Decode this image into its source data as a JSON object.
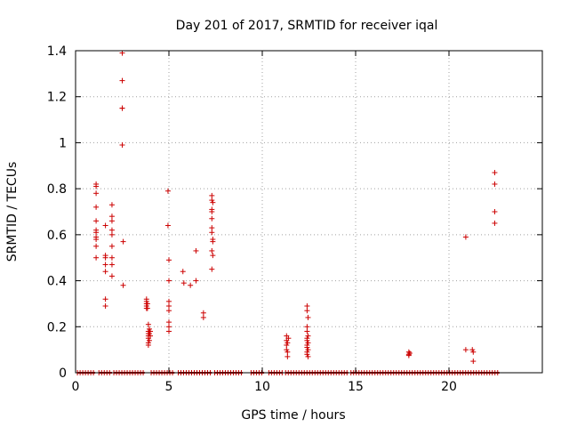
{
  "chart_data": {
    "type": "scatter",
    "title": "Day 201 of 2017, SRMTID for receiver iqal",
    "xlabel": "GPS time / hours",
    "ylabel": "SRMTID / TECUs",
    "xlim": [
      0,
      25
    ],
    "ylim": [
      0,
      1.4
    ],
    "xticks": [
      0,
      5,
      10,
      15,
      20
    ],
    "xtick_labels": [
      "0",
      "5",
      "10",
      "15",
      "20"
    ],
    "yticks": [
      0,
      0.2,
      0.4,
      0.6,
      0.8,
      1,
      1.2,
      1.4
    ],
    "ytick_labels": [
      "0",
      "0.2",
      "0.4",
      "0.6",
      "0.8",
      "1",
      "1.2",
      "1.4"
    ],
    "grid": true,
    "marker": "+",
    "color": "#cc0000",
    "zero_segments": [
      [
        0.1,
        1.05
      ],
      [
        1.25,
        1.95
      ],
      [
        2.05,
        3.7
      ],
      [
        4.05,
        5.3
      ],
      [
        5.5,
        7.3
      ],
      [
        7.45,
        8.95
      ],
      [
        9.4,
        10.1
      ],
      [
        10.35,
        11.1
      ],
      [
        11.25,
        14.6
      ],
      [
        14.75,
        22.7
      ]
    ],
    "series": [
      {
        "name": "SRMTID",
        "points": [
          [
            1.1,
            0.82
          ],
          [
            1.1,
            0.81
          ],
          [
            1.1,
            0.78
          ],
          [
            1.1,
            0.72
          ],
          [
            1.1,
            0.66
          ],
          [
            1.1,
            0.62
          ],
          [
            1.1,
            0.61
          ],
          [
            1.1,
            0.59
          ],
          [
            1.1,
            0.58
          ],
          [
            1.1,
            0.55
          ],
          [
            1.1,
            0.5
          ],
          [
            1.6,
            0.64
          ],
          [
            1.6,
            0.51
          ],
          [
            1.6,
            0.5
          ],
          [
            1.6,
            0.47
          ],
          [
            1.6,
            0.44
          ],
          [
            1.6,
            0.32
          ],
          [
            1.6,
            0.29
          ],
          [
            1.95,
            0.73
          ],
          [
            1.95,
            0.68
          ],
          [
            1.95,
            0.66
          ],
          [
            1.95,
            0.62
          ],
          [
            1.95,
            0.6
          ],
          [
            1.95,
            0.55
          ],
          [
            1.95,
            0.5
          ],
          [
            1.95,
            0.47
          ],
          [
            1.95,
            0.42
          ],
          [
            2.5,
            1.39
          ],
          [
            2.5,
            1.27
          ],
          [
            2.5,
            1.15
          ],
          [
            2.5,
            1.15
          ],
          [
            2.5,
            0.99
          ],
          [
            2.55,
            0.57
          ],
          [
            2.55,
            0.38
          ],
          [
            3.8,
            0.32
          ],
          [
            3.8,
            0.31
          ],
          [
            3.8,
            0.3
          ],
          [
            3.8,
            0.29
          ],
          [
            3.8,
            0.28
          ],
          [
            3.85,
            0.3
          ],
          [
            3.85,
            0.28
          ],
          [
            3.9,
            0.21
          ],
          [
            3.9,
            0.18
          ],
          [
            3.9,
            0.17
          ],
          [
            3.9,
            0.16
          ],
          [
            3.9,
            0.15
          ],
          [
            3.9,
            0.13
          ],
          [
            3.9,
            0.12
          ],
          [
            3.95,
            0.19
          ],
          [
            3.95,
            0.17
          ],
          [
            3.95,
            0.14
          ],
          [
            4.0,
            0.18
          ],
          [
            4.0,
            0.16
          ],
          [
            4.95,
            0.79
          ],
          [
            4.95,
            0.64
          ],
          [
            5.0,
            0.49
          ],
          [
            5.0,
            0.4
          ],
          [
            5.0,
            0.31
          ],
          [
            5.0,
            0.29
          ],
          [
            5.0,
            0.27
          ],
          [
            5.0,
            0.22
          ],
          [
            5.0,
            0.2
          ],
          [
            5.0,
            0.18
          ],
          [
            5.75,
            0.44
          ],
          [
            5.8,
            0.39
          ],
          [
            6.15,
            0.38
          ],
          [
            6.45,
            0.53
          ],
          [
            6.45,
            0.4
          ],
          [
            6.85,
            0.26
          ],
          [
            6.85,
            0.24
          ],
          [
            7.3,
            0.77
          ],
          [
            7.3,
            0.75
          ],
          [
            7.35,
            0.74
          ],
          [
            7.3,
            0.71
          ],
          [
            7.3,
            0.7
          ],
          [
            7.3,
            0.67
          ],
          [
            7.3,
            0.63
          ],
          [
            7.3,
            0.61
          ],
          [
            7.35,
            0.58
          ],
          [
            7.35,
            0.57
          ],
          [
            7.3,
            0.53
          ],
          [
            7.35,
            0.51
          ],
          [
            7.3,
            0.45
          ],
          [
            11.3,
            0.16
          ],
          [
            11.3,
            0.14
          ],
          [
            11.35,
            0.13
          ],
          [
            11.3,
            0.12
          ],
          [
            11.3,
            0.1
          ],
          [
            11.35,
            0.09
          ],
          [
            11.35,
            0.07
          ],
          [
            11.4,
            0.15
          ],
          [
            12.4,
            0.29
          ],
          [
            12.4,
            0.27
          ],
          [
            12.45,
            0.24
          ],
          [
            12.4,
            0.2
          ],
          [
            12.4,
            0.18
          ],
          [
            12.45,
            0.16
          ],
          [
            12.4,
            0.15
          ],
          [
            12.4,
            0.14
          ],
          [
            12.45,
            0.13
          ],
          [
            12.4,
            0.12
          ],
          [
            12.4,
            0.11
          ],
          [
            12.45,
            0.1
          ],
          [
            12.4,
            0.09
          ],
          [
            12.4,
            0.08
          ],
          [
            12.45,
            0.07
          ],
          [
            17.85,
            0.09
          ],
          [
            17.85,
            0.08
          ],
          [
            17.9,
            0.085
          ],
          [
            17.85,
            0.075
          ],
          [
            20.9,
            0.59
          ],
          [
            20.9,
            0.1
          ],
          [
            21.25,
            0.1
          ],
          [
            21.3,
            0.09
          ],
          [
            21.3,
            0.05
          ],
          [
            22.45,
            0.87
          ],
          [
            22.45,
            0.82
          ],
          [
            22.45,
            0.7
          ],
          [
            22.45,
            0.65
          ]
        ]
      }
    ]
  }
}
